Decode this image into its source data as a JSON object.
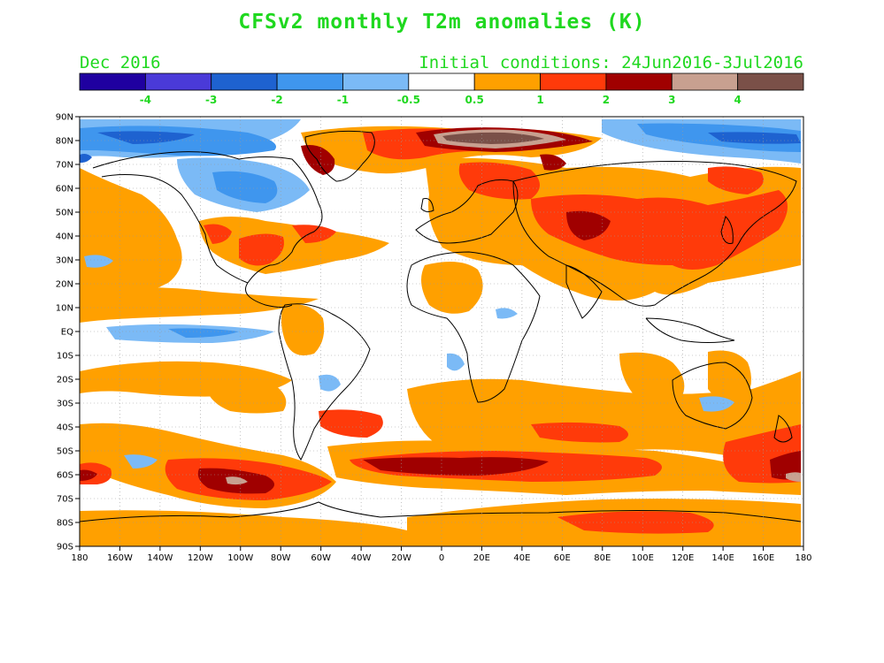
{
  "header": {
    "title": "CFSv2 monthly T2m anomalies (K)",
    "valid_month": "Dec 2016",
    "initial_conditions": "Initial conditions: 24Jun2016-3Jul2016"
  },
  "legend": {
    "colors": [
      "#1f00a0",
      "#4a3ad8",
      "#1e62d0",
      "#3f96ee",
      "#7bbaf6",
      "#ffffff",
      "#ffa000",
      "#ff3a0a",
      "#a00000",
      "#c8a090",
      "#7a5048"
    ],
    "tick_labels": [
      "-4",
      "-3",
      "-2",
      "-1",
      "-0.5",
      "0.5",
      "1",
      "2",
      "3",
      "4"
    ]
  },
  "map": {
    "lat_labels": [
      "90N",
      "80N",
      "70N",
      "60N",
      "50N",
      "40N",
      "30N",
      "20N",
      "10N",
      "EQ",
      "10S",
      "20S",
      "30S",
      "40S",
      "50S",
      "60S",
      "70S",
      "80S",
      "90S"
    ],
    "lon_labels": [
      "180",
      "160W",
      "140W",
      "120W",
      "100W",
      "80W",
      "60W",
      "40W",
      "20W",
      "0",
      "20E",
      "40E",
      "60E",
      "80E",
      "100E",
      "120E",
      "140E",
      "160E",
      "180"
    ]
  },
  "colors": {
    "title": "#1fd81f",
    "frame": "#000000",
    "grid": "#9a9a9a"
  }
}
